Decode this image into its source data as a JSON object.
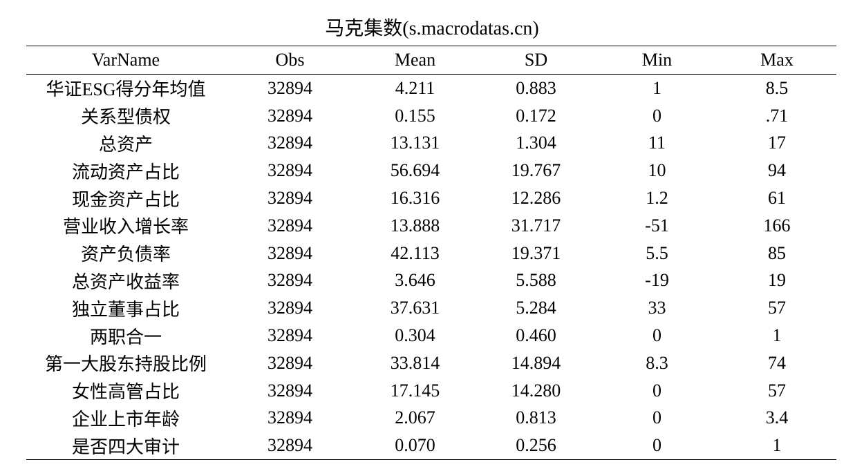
{
  "title": "马克集数(s.macrodatas.cn)",
  "table": {
    "headers": [
      "VarName",
      "Obs",
      "Mean",
      "SD",
      "Min",
      "Max"
    ],
    "rows": [
      [
        "华证ESG得分年均值",
        "32894",
        "4.211",
        "0.883",
        "1",
        "8.5"
      ],
      [
        "关系型债权",
        "32894",
        "0.155",
        "0.172",
        "0",
        ".71"
      ],
      [
        "总资产",
        "32894",
        "13.131",
        "1.304",
        "11",
        "17"
      ],
      [
        "流动资产占比",
        "32894",
        "56.694",
        "19.767",
        "10",
        "94"
      ],
      [
        "现金资产占比",
        "32894",
        "16.316",
        "12.286",
        "1.2",
        "61"
      ],
      [
        "营业收入增长率",
        "32894",
        "13.888",
        "31.717",
        "-51",
        "166"
      ],
      [
        "资产负债率",
        "32894",
        "42.113",
        "19.371",
        "5.5",
        "85"
      ],
      [
        "总资产收益率",
        "32894",
        "3.646",
        "5.588",
        "-19",
        "19"
      ],
      [
        "独立董事占比",
        "32894",
        "37.631",
        "5.284",
        "33",
        "57"
      ],
      [
        "两职合一",
        "32894",
        "0.304",
        "0.460",
        "0",
        "1"
      ],
      [
        "第一大股东持股比例",
        "32894",
        "33.814",
        "14.894",
        "8.3",
        "74"
      ],
      [
        "女性高管占比",
        "32894",
        "17.145",
        "14.280",
        "0",
        "57"
      ],
      [
        "企业上市年龄",
        "32894",
        "2.067",
        "0.813",
        "0",
        "3.4"
      ],
      [
        "是否四大审计",
        "32894",
        "0.070",
        "0.256",
        "0",
        "1"
      ]
    ]
  }
}
